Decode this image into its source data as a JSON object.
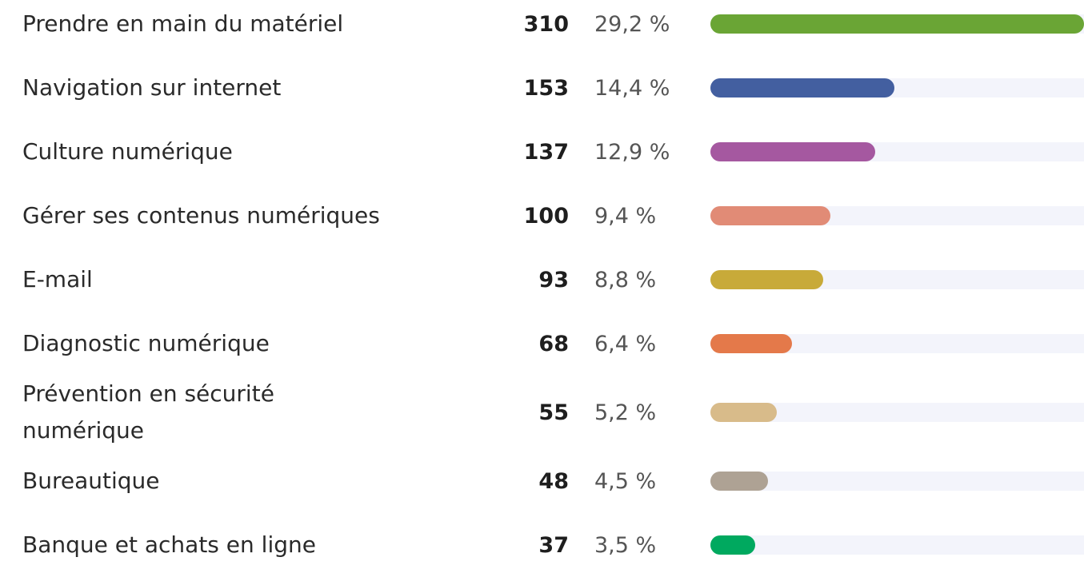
{
  "chart_data": {
    "type": "bar",
    "categories": [
      "Prendre en main du matériel",
      "Navigation sur internet",
      "Culture numérique",
      "Gérer ses contenus numériques",
      "E-mail",
      "Diagnostic numérique",
      "Prévention en sécurité numérique",
      "Bureautique",
      "Banque et achats en ligne"
    ],
    "values": [
      310,
      153,
      137,
      100,
      93,
      68,
      55,
      48,
      37
    ],
    "shares": [
      29.2,
      14.4,
      12.9,
      9.4,
      8.8,
      6.4,
      5.2,
      4.5,
      3.5
    ],
    "share_labels": [
      "29,2 %",
      "14,4 %",
      "12,9 %",
      "9,4 %",
      "8,8 %",
      "6,4 %",
      "5,2 %",
      "4,5 %",
      "3,5 %"
    ],
    "colors": [
      "#6aa535",
      "#435fa0",
      "#a558a0",
      "#e18b76",
      "#c8aa39",
      "#e4794a",
      "#d8bb8a",
      "#aea294",
      "#00a95f"
    ]
  }
}
